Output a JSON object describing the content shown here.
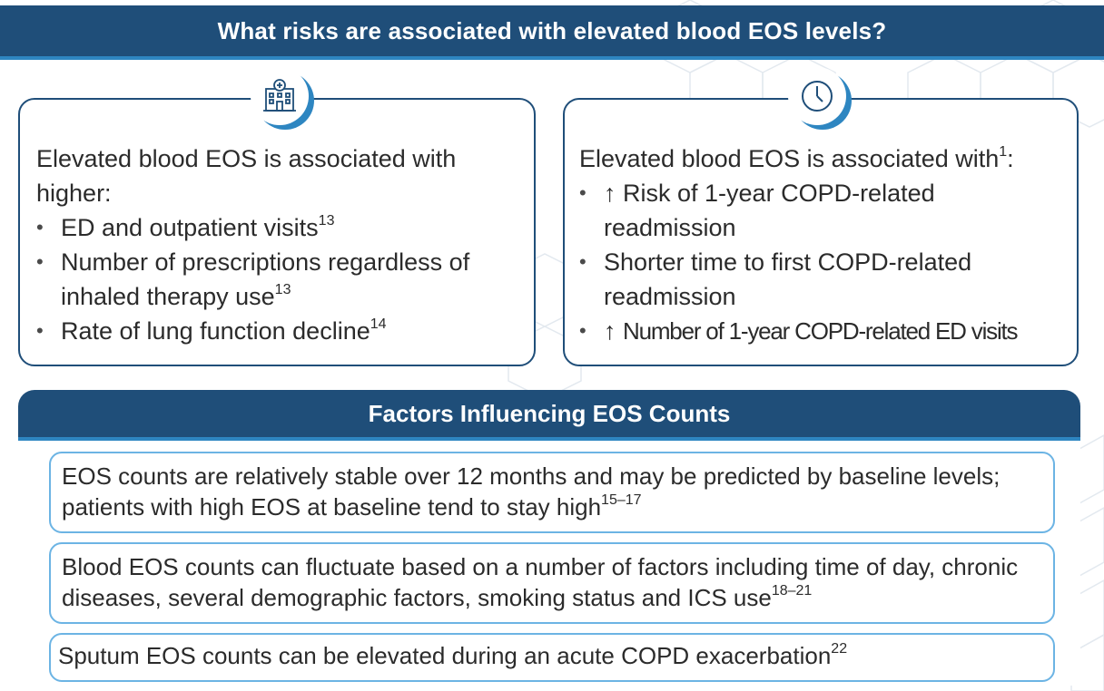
{
  "header": {
    "title": "What risks are associated with elevated blood EOS levels?"
  },
  "left_card": {
    "icon": "hospital-icon",
    "lead": "Elevated blood EOS is associated with higher:",
    "items": [
      {
        "text": "ED and outpatient visits",
        "ref": "13"
      },
      {
        "text": "Number of prescriptions regardless of inhaled therapy use",
        "ref": "13"
      },
      {
        "text": "Rate of lung function decline",
        "ref": "14"
      }
    ]
  },
  "right_card": {
    "icon": "clock-icon",
    "lead": "Elevated blood EOS is associated with",
    "lead_ref": "1",
    "lead_suffix": ":",
    "items": [
      {
        "prefix": "↑",
        "text": "Risk of 1-year COPD-related readmission"
      },
      {
        "text": "Shorter time to first COPD-related readmission"
      },
      {
        "prefix": "↑",
        "text": "Number of 1-year COPD-related ED visits"
      }
    ]
  },
  "factors": {
    "title": "Factors Influencing EOS Counts",
    "items": [
      {
        "text": "EOS counts are relatively stable over 12 months and may be predicted by baseline levels; patients with high EOS at baseline tend to stay high",
        "ref": "15–17"
      },
      {
        "text": "Blood EOS counts can fluctuate based on a number of factors including time of day, chronic diseases, several demographic factors, smoking status and ICS use",
        "ref": "18–21"
      },
      {
        "text": "Sputum EOS counts can be elevated during an acute COPD exacerbation",
        "ref": "22"
      }
    ]
  },
  "colors": {
    "navy": "#1f4e79",
    "accent_blue": "#2e86c1",
    "light_blue": "#6cb4e4"
  }
}
